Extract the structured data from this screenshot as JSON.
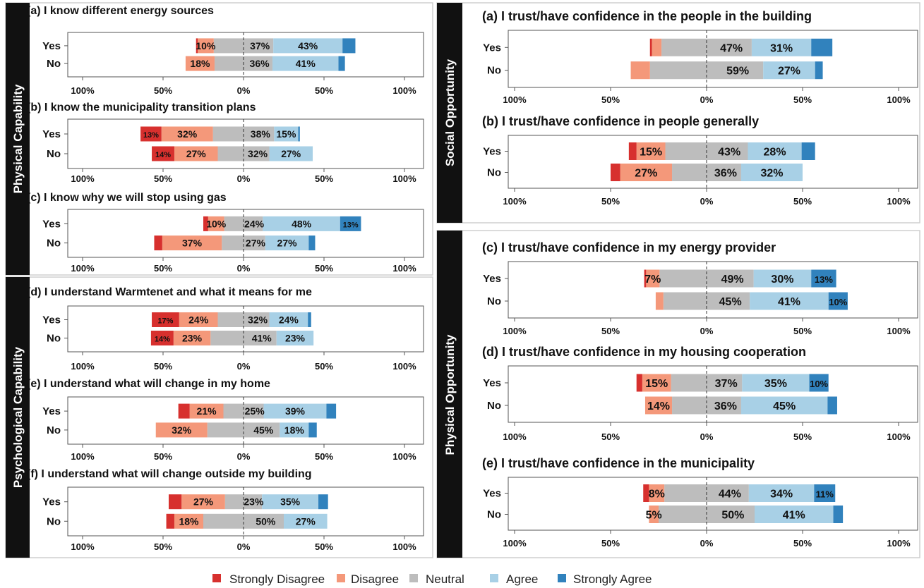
{
  "colors": {
    "strongly_disagree": "#d7302e",
    "disagree": "#f4987a",
    "neutral": "#bdbdbd",
    "agree": "#a8d0e6",
    "strongly_agree": "#3182bd"
  },
  "groups": {
    "physical_capability": "Physical Capability",
    "psychological_capability": "Psychological Capability",
    "social_opportunity": "Social Opportunity",
    "physical_opportunity": "Physical Opportunity"
  },
  "legend": [
    "Strongly Disagree",
    "Disagree",
    "Neutral",
    "Agree",
    "Strongly Agree"
  ],
  "chart_data": [
    {
      "type": "bar",
      "title": "(a) I know different energy sources",
      "group": "Physical Capability",
      "categories": [
        "Yes",
        "No"
      ],
      "x_ticks": [
        "100%",
        "50%",
        "0%",
        "50%",
        "100%"
      ],
      "xlim": [
        -100,
        100
      ],
      "series": [
        {
          "name": "Strongly Disagree",
          "values": [
            -1,
            0
          ]
        },
        {
          "name": "Disagree",
          "values": [
            -10,
            -18
          ]
        },
        {
          "name": "Neutral",
          "values": [
            37,
            36
          ]
        },
        {
          "name": "Agree",
          "values": [
            43,
            41
          ]
        },
        {
          "name": "Strongly Agree",
          "values": [
            8,
            4
          ]
        }
      ],
      "labels": [
        [
          "",
          "10%",
          "37%",
          "43%",
          ""
        ],
        [
          "",
          "18%",
          "36%",
          "41%",
          ""
        ]
      ]
    },
    {
      "type": "bar",
      "title": "(b) I know the municipality transition plans",
      "group": "Physical Capability",
      "categories": [
        "Yes",
        "No"
      ],
      "x_ticks": [
        "100%",
        "50%",
        "0%",
        "50%",
        "100%"
      ],
      "xlim": [
        -100,
        100
      ],
      "series": [
        {
          "name": "Strongly Disagree",
          "values": [
            -13,
            -14
          ]
        },
        {
          "name": "Disagree",
          "values": [
            -32,
            -27
          ]
        },
        {
          "name": "Neutral",
          "values": [
            38,
            32
          ]
        },
        {
          "name": "Agree",
          "values": [
            15,
            27
          ]
        },
        {
          "name": "Strongly Agree",
          "values": [
            1,
            0
          ]
        }
      ],
      "labels": [
        [
          "13%",
          "32%",
          "38%",
          "15%",
          ""
        ],
        [
          "14%",
          "27%",
          "32%",
          "27%",
          ""
        ]
      ]
    },
    {
      "type": "bar",
      "title": "(c) I know why we will stop using gas",
      "group": "Physical Capability",
      "categories": [
        "Yes",
        "No"
      ],
      "x_ticks": [
        "100%",
        "50%",
        "0%",
        "50%",
        "100%"
      ],
      "xlim": [
        -100,
        100
      ],
      "series": [
        {
          "name": "Strongly Disagree",
          "values": [
            -3,
            -5
          ]
        },
        {
          "name": "Disagree",
          "values": [
            -10,
            -37
          ]
        },
        {
          "name": "Neutral",
          "values": [
            24,
            27
          ]
        },
        {
          "name": "Agree",
          "values": [
            48,
            27
          ]
        },
        {
          "name": "Strongly Agree",
          "values": [
            13,
            4
          ]
        }
      ],
      "labels": [
        [
          "",
          "10%",
          "24%",
          "48%",
          "13%"
        ],
        [
          "",
          "37%",
          "27%",
          "27%",
          ""
        ]
      ]
    },
    {
      "type": "bar",
      "title": "(d) I understand Warmtenet and what it means for me",
      "group": "Psychological Capability",
      "categories": [
        "Yes",
        "No"
      ],
      "x_ticks": [
        "100%",
        "50%",
        "0%",
        "50%",
        "100%"
      ],
      "xlim": [
        -100,
        100
      ],
      "series": [
        {
          "name": "Strongly Disagree",
          "values": [
            -17,
            -14
          ]
        },
        {
          "name": "Disagree",
          "values": [
            -24,
            -23
          ]
        },
        {
          "name": "Neutral",
          "values": [
            32,
            41
          ]
        },
        {
          "name": "Agree",
          "values": [
            24,
            23
          ]
        },
        {
          "name": "Strongly Agree",
          "values": [
            2,
            0
          ]
        }
      ],
      "labels": [
        [
          "17%",
          "24%",
          "32%",
          "24%",
          ""
        ],
        [
          "14%",
          "23%",
          "41%",
          "23%",
          ""
        ]
      ]
    },
    {
      "type": "bar",
      "title": "(e) I understand what will change in my home",
      "group": "Psychological Capability",
      "categories": [
        "Yes",
        "No"
      ],
      "x_ticks": [
        "100%",
        "50%",
        "0%",
        "50%",
        "100%"
      ],
      "xlim": [
        -100,
        100
      ],
      "series": [
        {
          "name": "Strongly Disagree",
          "values": [
            -7,
            0
          ]
        },
        {
          "name": "Disagree",
          "values": [
            -21,
            -32
          ]
        },
        {
          "name": "Neutral",
          "values": [
            25,
            45
          ]
        },
        {
          "name": "Agree",
          "values": [
            39,
            18
          ]
        },
        {
          "name": "Strongly Agree",
          "values": [
            6,
            5
          ]
        }
      ],
      "labels": [
        [
          "",
          "21%",
          "25%",
          "39%",
          ""
        ],
        [
          "",
          "32%",
          "45%",
          "18%",
          ""
        ]
      ]
    },
    {
      "type": "bar",
      "title": "(f) I understand what will change outside my building",
      "group": "Psychological Capability",
      "categories": [
        "Yes",
        "No"
      ],
      "x_ticks": [
        "100%",
        "50%",
        "0%",
        "50%",
        "100%"
      ],
      "xlim": [
        -100,
        100
      ],
      "series": [
        {
          "name": "Strongly Disagree",
          "values": [
            -8,
            -5
          ]
        },
        {
          "name": "Disagree",
          "values": [
            -27,
            -18
          ]
        },
        {
          "name": "Neutral",
          "values": [
            23,
            50
          ]
        },
        {
          "name": "Agree",
          "values": [
            35,
            27
          ]
        },
        {
          "name": "Strongly Agree",
          "values": [
            6,
            0
          ]
        }
      ],
      "labels": [
        [
          "",
          "27%",
          "23%",
          "35%",
          ""
        ],
        [
          "",
          "18%",
          "50%",
          "27%",
          ""
        ]
      ]
    },
    {
      "type": "bar",
      "title": "(a) I trust/have confidence in the people in the building",
      "group": "Social Opportunity",
      "categories": [
        "Yes",
        "No"
      ],
      "x_ticks": [
        "100%",
        "50%",
        "0%",
        "50%",
        "100%"
      ],
      "xlim": [
        -100,
        100
      ],
      "series": [
        {
          "name": "Strongly Disagree",
          "values": [
            -1,
            0
          ]
        },
        {
          "name": "Disagree",
          "values": [
            -5,
            -10
          ]
        },
        {
          "name": "Neutral",
          "values": [
            47,
            59
          ]
        },
        {
          "name": "Agree",
          "values": [
            31,
            27
          ]
        },
        {
          "name": "Strongly Agree",
          "values": [
            11,
            4
          ]
        }
      ],
      "labels": [
        [
          "",
          "",
          "47%",
          "31%",
          ""
        ],
        [
          "",
          "",
          "59%",
          "27%",
          ""
        ]
      ]
    },
    {
      "type": "bar",
      "title": "(b) I trust/have confidence in people generally",
      "group": "Social Opportunity",
      "categories": [
        "Yes",
        "No"
      ],
      "x_ticks": [
        "100%",
        "50%",
        "0%",
        "50%",
        "100%"
      ],
      "xlim": [
        -100,
        100
      ],
      "series": [
        {
          "name": "Strongly Disagree",
          "values": [
            -4,
            -5
          ]
        },
        {
          "name": "Disagree",
          "values": [
            -15,
            -27
          ]
        },
        {
          "name": "Neutral",
          "values": [
            43,
            36
          ]
        },
        {
          "name": "Agree",
          "values": [
            28,
            32
          ]
        },
        {
          "name": "Strongly Agree",
          "values": [
            7,
            0
          ]
        }
      ],
      "labels": [
        [
          "",
          "15%",
          "43%",
          "28%",
          ""
        ],
        [
          "",
          "27%",
          "36%",
          "32%",
          ""
        ]
      ]
    },
    {
      "type": "bar",
      "title": "(c) I trust/have confidence in my energy provider",
      "group": "Physical Opportunity",
      "categories": [
        "Yes",
        "No"
      ],
      "x_ticks": [
        "100%",
        "50%",
        "0%",
        "50%",
        "100%"
      ],
      "xlim": [
        -100,
        100
      ],
      "series": [
        {
          "name": "Strongly Disagree",
          "values": [
            -1,
            0
          ]
        },
        {
          "name": "Disagree",
          "values": [
            -7,
            -4
          ]
        },
        {
          "name": "Neutral",
          "values": [
            49,
            45
          ]
        },
        {
          "name": "Agree",
          "values": [
            30,
            41
          ]
        },
        {
          "name": "Strongly Agree",
          "values": [
            13,
            10
          ]
        }
      ],
      "labels": [
        [
          "",
          "7%",
          "49%",
          "30%",
          "13%"
        ],
        [
          "",
          "",
          "45%",
          "41%",
          "10%"
        ]
      ]
    },
    {
      "type": "bar",
      "title": "(d) I trust/have confidence in my housing cooperation",
      "group": "Physical Opportunity",
      "categories": [
        "Yes",
        "No"
      ],
      "x_ticks": [
        "100%",
        "50%",
        "0%",
        "50%",
        "100%"
      ],
      "xlim": [
        -100,
        100
      ],
      "series": [
        {
          "name": "Strongly Disagree",
          "values": [
            -3,
            0
          ]
        },
        {
          "name": "Disagree",
          "values": [
            -15,
            -14
          ]
        },
        {
          "name": "Neutral",
          "values": [
            37,
            36
          ]
        },
        {
          "name": "Agree",
          "values": [
            35,
            45
          ]
        },
        {
          "name": "Strongly Agree",
          "values": [
            10,
            5
          ]
        }
      ],
      "labels": [
        [
          "",
          "15%",
          "37%",
          "35%",
          "10%"
        ],
        [
          "",
          "14%",
          "36%",
          "45%",
          ""
        ]
      ]
    },
    {
      "type": "bar",
      "title": "(e) I trust/have confidence in the municipality",
      "group": "Physical Opportunity",
      "categories": [
        "Yes",
        "No"
      ],
      "x_ticks": [
        "100%",
        "50%",
        "0%",
        "50%",
        "100%"
      ],
      "xlim": [
        -100,
        100
      ],
      "series": [
        {
          "name": "Strongly Disagree",
          "values": [
            -3,
            0
          ]
        },
        {
          "name": "Disagree",
          "values": [
            -8,
            -5
          ]
        },
        {
          "name": "Neutral",
          "values": [
            44,
            50
          ]
        },
        {
          "name": "Agree",
          "values": [
            34,
            41
          ]
        },
        {
          "name": "Strongly Agree",
          "values": [
            11,
            5
          ]
        }
      ],
      "labels": [
        [
          "",
          "8%",
          "44%",
          "34%",
          "11%"
        ],
        [
          "",
          "5%",
          "50%",
          "41%",
          ""
        ]
      ]
    }
  ]
}
